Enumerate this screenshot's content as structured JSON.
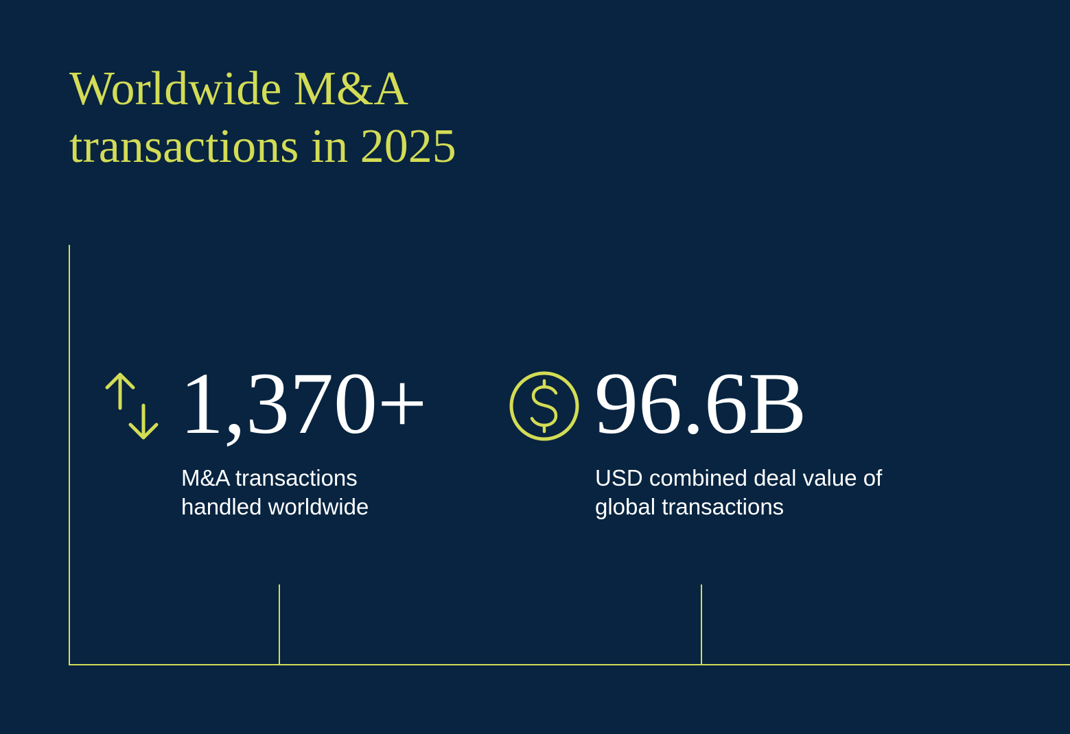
{
  "title": "Worldwide M&A transactions in 2025",
  "stats": [
    {
      "value": "1,370+",
      "description": "M&A transactions handled worldwide"
    },
    {
      "value": "96.6B",
      "description": "USD combined deal value of global transactions"
    }
  ]
}
